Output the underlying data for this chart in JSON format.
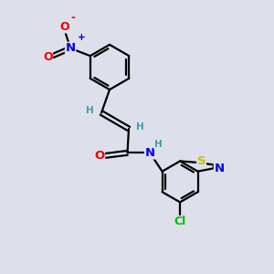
{
  "bg_color": "#dde0ea",
  "bond_color": "#000000",
  "bond_width": 1.6,
  "atom_colors": {
    "N": "#0000ee",
    "O": "#ee0000",
    "S": "#ccbb00",
    "Cl": "#00bb00",
    "H": "#4499aa"
  },
  "font_size": 8.5,
  "fig_size": [
    3.0,
    3.0
  ],
  "dpi": 100
}
